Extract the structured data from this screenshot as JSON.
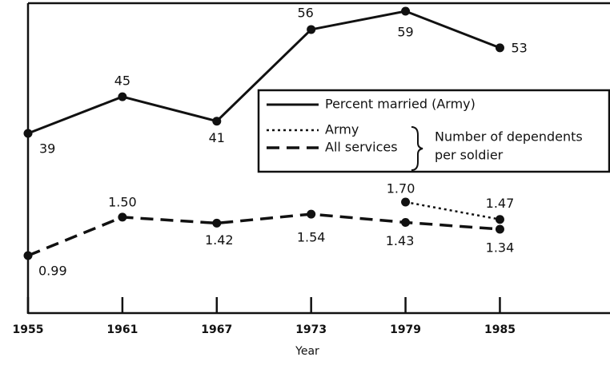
{
  "chart_data": {
    "type": "line",
    "x_label": "Year",
    "x": [
      1955,
      1961,
      1967,
      1973,
      1979,
      1985
    ],
    "xlim": [
      1955,
      1992
    ],
    "xticks": [
      1955,
      1961,
      1967,
      1973,
      1979,
      1985
    ],
    "series": [
      {
        "name": "Percent married (Army)",
        "color": "#111111",
        "style": "solid",
        "group": "percent",
        "values": [
          39,
          45,
          41,
          56,
          59,
          53
        ]
      },
      {
        "name": "Army",
        "color": "#111111",
        "style": "dotted",
        "group": "dependents",
        "values": [
          null,
          null,
          null,
          null,
          1.7,
          1.47
        ],
        "value_labels": [
          null,
          null,
          null,
          null,
          "1.70",
          "1.47"
        ]
      },
      {
        "name": "All services",
        "color": "#111111",
        "style": "dashed",
        "group": "dependents",
        "values": [
          0.99,
          1.5,
          1.42,
          1.54,
          1.43,
          1.34
        ],
        "value_labels": [
          "0.99",
          "1.50",
          "1.42",
          "1.54",
          "1.43",
          "1.34"
        ]
      }
    ],
    "legend_group_label": [
      "Number of dependents",
      "per soldier"
    ]
  }
}
